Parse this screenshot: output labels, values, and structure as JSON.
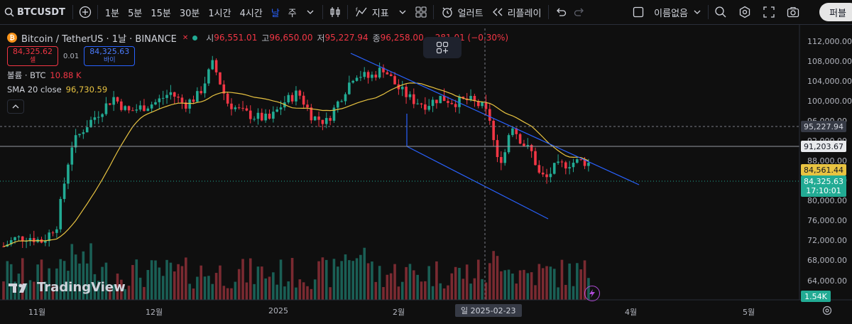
{
  "toolbar": {
    "symbol": "BTCUSDT",
    "intervals": [
      "1분",
      "5분",
      "15분",
      "30분",
      "1시간",
      "4시간",
      "날",
      "주"
    ],
    "active_interval": "날",
    "indicators_label": "지표",
    "alert_label": "얼러트",
    "replay_label": "리플레이",
    "layout_name": "이름없음",
    "share_label": "퍼블"
  },
  "legend": {
    "title": "Bitcoin / TetherUS · 1날 · BINANCE",
    "open_label": "시",
    "open": "96,551.01",
    "high_label": "고",
    "high": "96,650.00",
    "low_label": "저",
    "low": "95,227.94",
    "close_label": "종",
    "close": "96,258.00",
    "change": "−281.01 (−0.30%)",
    "sell_price": "84,325.62",
    "sell_label": "셀",
    "spread": "0.01",
    "buy_price": "84,325.63",
    "buy_label": "바이",
    "volume_label": "볼륨 · BTC",
    "volume_value": "10.88 K",
    "sma_label": "SMA 20 close",
    "sma_value": "96,730.59"
  },
  "price_axis": [
    "112,000.00",
    "108,000.00",
    "104,000.00",
    "100,000.00",
    "96,000.00",
    "92,000.00",
    "88,000.00",
    "84,000.00",
    "80,000.00",
    "76,000.00",
    "72,000.00",
    "68,000.00",
    "64,000.00"
  ],
  "price_labels": {
    "crosshair": "95,227.94",
    "level": "91,203.67",
    "sma": "84,561.44",
    "last": "84,325.63",
    "countdown": "17:10:01",
    "volume": "1.54K"
  },
  "time_axis": [
    "11월",
    "12월",
    "2025",
    "2월",
    "4월",
    "5월"
  ],
  "crosshair_date": "일 2025-02-23",
  "watermark": "TradingView",
  "colors": {
    "up": "#22ab94",
    "down": "#f23645",
    "sma": "#e8c341",
    "trend": "#2962ff",
    "bg": "#0f0f0f"
  },
  "chart_data": {
    "type": "candlestick",
    "symbol": "BTCUSDT",
    "y_axis_range": [
      62000,
      114000
    ],
    "horizontal_levels": [
      95227.94,
      91203.67
    ],
    "last_price": 84325.63,
    "sma20_last": 84561.44
  }
}
